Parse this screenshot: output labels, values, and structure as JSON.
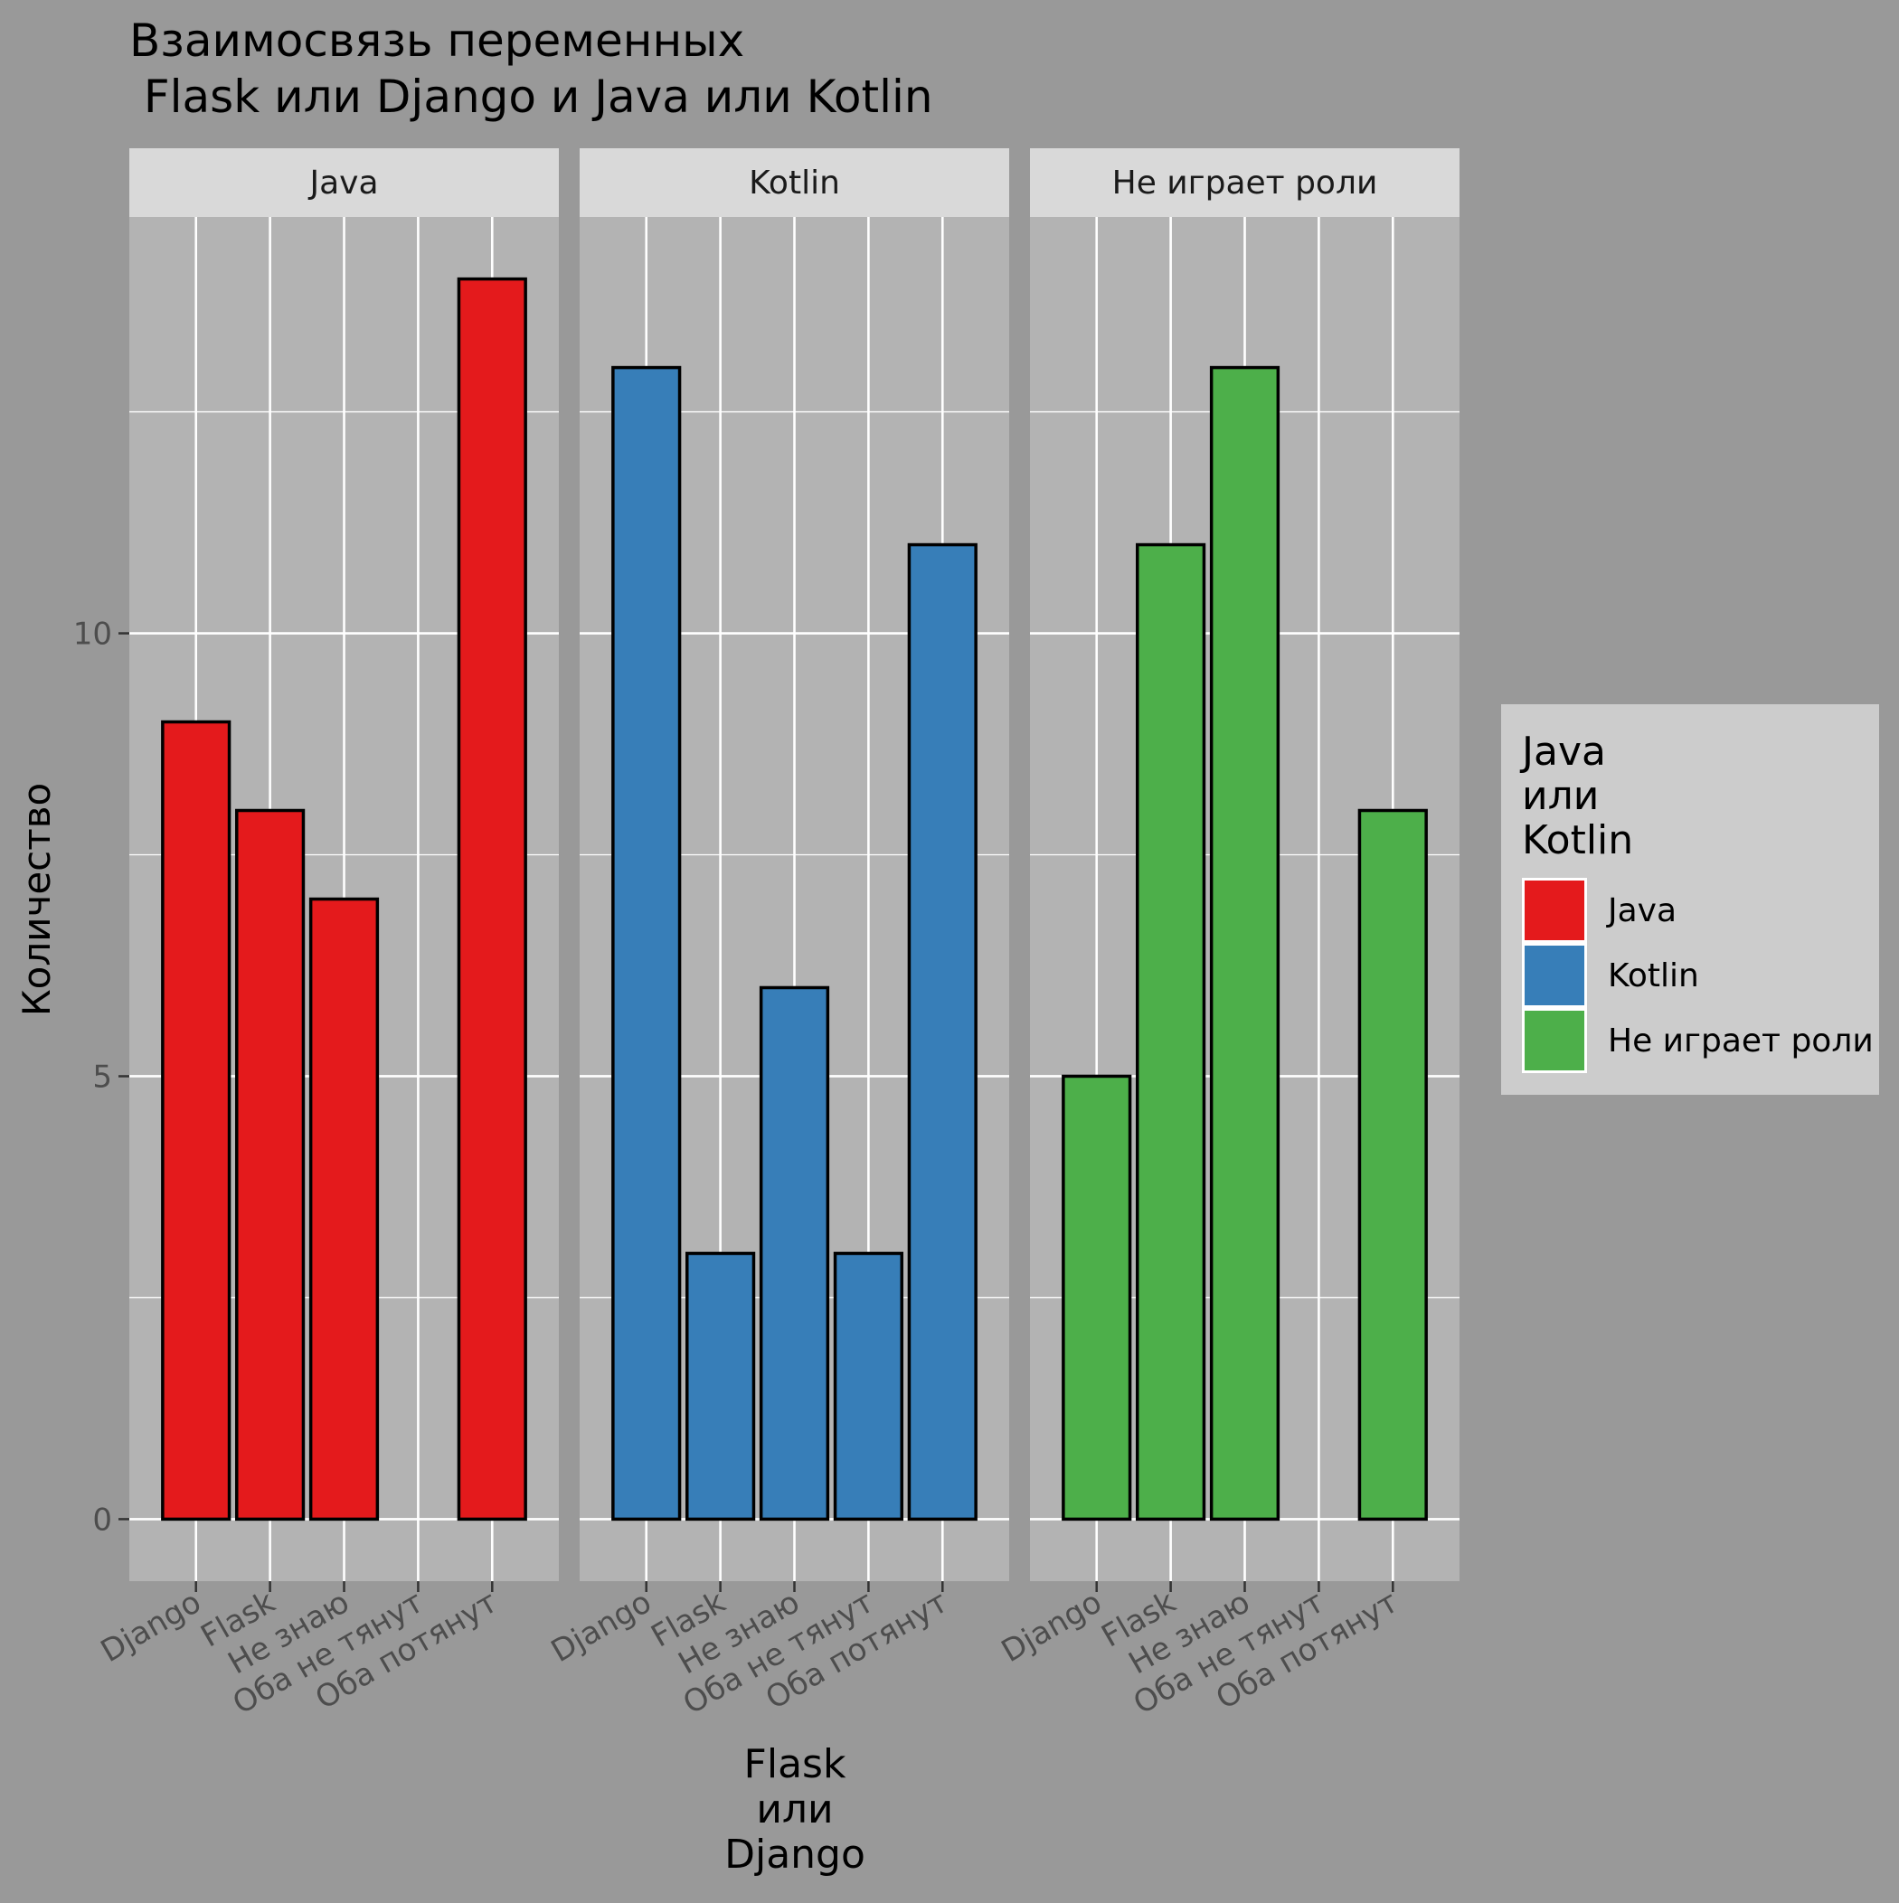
{
  "chart_data": {
    "type": "bar",
    "title_line1": "Взаимосвязь переменных",
    "title_line2": " Flask или Django и Java или Kotlin",
    "xlabel_lines": [
      "Flask",
      "или",
      "Django"
    ],
    "ylabel": "Количество",
    "categories": [
      "Django",
      "Flask",
      "Не знаю",
      "Оба не тянут",
      "Оба потянут"
    ],
    "ylim": [
      -0.7,
      14.7
    ],
    "yticks": [
      0,
      5,
      10
    ],
    "grid": true,
    "legend": {
      "placement": "right",
      "title_lines": [
        "Java",
        "или",
        "Kotlin"
      ]
    },
    "panels": [
      {
        "name": "Java",
        "color": "#E41A1C",
        "values": [
          9,
          8,
          7,
          0,
          14
        ]
      },
      {
        "name": "Kotlin",
        "color": "#377EB8",
        "values": [
          13,
          3,
          6,
          3,
          11
        ]
      },
      {
        "name": "Не играет роли",
        "color": "#4DAF4A",
        "values": [
          5,
          11,
          13,
          0,
          8
        ]
      }
    ]
  }
}
